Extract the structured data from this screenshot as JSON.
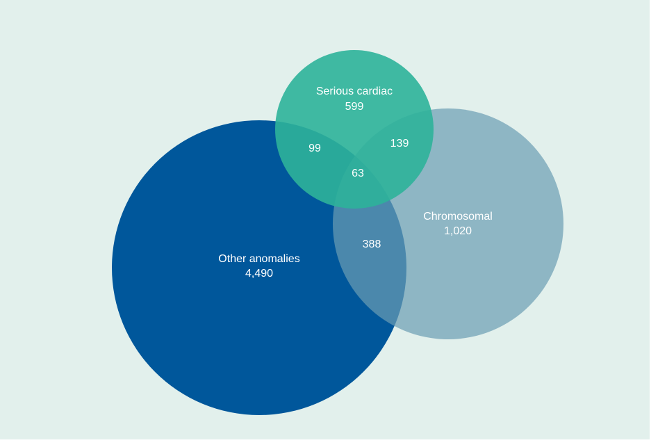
{
  "sets": [
    {
      "label": "Other anomalies",
      "count": "4,490"
    },
    {
      "label": "Serious cardiac",
      "count": "599"
    },
    {
      "label": "Chromosomal",
      "count": "1,020"
    }
  ],
  "intersections": [
    {
      "sets": "Other anomalies & Serious cardiac",
      "count": "99"
    },
    {
      "sets": "Serious cardiac & Chromosomal",
      "count": "139"
    },
    {
      "sets": "Other anomalies & Chromosomal",
      "count": "388"
    },
    {
      "sets": "All three",
      "count": "63"
    }
  ]
}
